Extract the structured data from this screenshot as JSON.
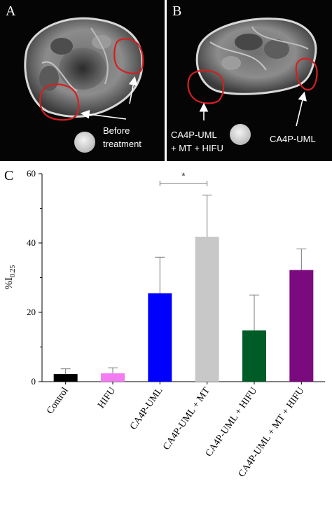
{
  "panel_a": {
    "label": "A",
    "annotation_line1": "Before",
    "annotation_line2": "treatment"
  },
  "panel_b": {
    "label": "B",
    "annotation_left_line1": "CA4P-UML",
    "annotation_left_line2": "+ MT + HIFU",
    "annotation_right": "CA4P-UML"
  },
  "colors": {
    "tumor_outline": "#d41f1f",
    "mri_background": "#050505"
  },
  "chart_data": {
    "type": "bar",
    "panel_label": "C",
    "categories": [
      "Control",
      "HIFU",
      "CA4P-UML",
      "CA4P-UML + MT",
      "CA4P-UML + HIFU",
      "CA4P-UML + MT + HIFU"
    ],
    "values": [
      2.2,
      2.4,
      25.5,
      41.8,
      14.8,
      32.2
    ],
    "errors": [
      1.5,
      1.6,
      10.4,
      12.0,
      10.2,
      6.1
    ],
    "colors": [
      "#000000",
      "#f27df2",
      "#0000ff",
      "#c8c8c8",
      "#005c26",
      "#7a0a7e"
    ],
    "ylabel_main": "%I",
    "ylabel_sub": "0.25",
    "ylim": [
      0,
      60
    ],
    "yticks": [
      0,
      20,
      40,
      60
    ],
    "ytick_labels": [
      "0",
      "20",
      "40",
      "60"
    ],
    "grid": false,
    "significance": {
      "between": [
        "CA4P-UML",
        "CA4P-UML + MT"
      ],
      "label": "*"
    }
  }
}
